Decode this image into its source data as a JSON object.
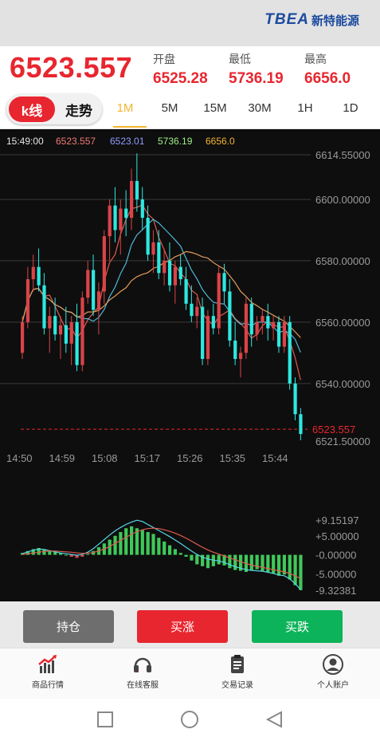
{
  "brand": {
    "logo_text": "TBEA",
    "name": "新特能源"
  },
  "price": {
    "current": "6523.557",
    "open_label": "开盘",
    "open_value": "6525.28",
    "low_label": "最低",
    "low_value": "5736.19",
    "high_label": "最高",
    "high_value": "6656.0"
  },
  "tabs": {
    "kline_label": "k线",
    "trend_label": "走势",
    "periods": [
      "1M",
      "5M",
      "15M",
      "30M",
      "1H",
      "1D"
    ],
    "active_period": "1M"
  },
  "chart_data": {
    "type": "candlestick",
    "legend": {
      "time": "15:49:00",
      "ma1": "6523.557",
      "ma2": "6523.01",
      "ma3": "5736.19",
      "ma4": "6656.0"
    },
    "y_ticks": [
      "6614.55000",
      "6600.00000",
      "6580.00000",
      "6560.00000",
      "6540.00000",
      "6521.50000"
    ],
    "current_price_label": "6523.557",
    "x_ticks": [
      "14:50",
      "14:59",
      "15:08",
      "15:17",
      "15:26",
      "15:35",
      "15:44"
    ],
    "ylim": [
      6521.5,
      6614.55
    ],
    "candles": [
      [
        6550.0,
        6562.0,
        6548.0,
        6560.0
      ],
      [
        6560.0,
        6578.0,
        6558.0,
        6574.0
      ],
      [
        6574.0,
        6582.0,
        6570.0,
        6578.0
      ],
      [
        6578.0,
        6584.0,
        6570.0,
        6572.0
      ],
      [
        6572.0,
        6576.0,
        6556.0,
        6558.0
      ],
      [
        6558.0,
        6565.0,
        6550.0,
        6562.0
      ],
      [
        6562.0,
        6568.0,
        6554.0,
        6556.0
      ],
      [
        6556.0,
        6562.0,
        6548.0,
        6559.0
      ],
      [
        6559.0,
        6565.0,
        6550.0,
        6553.0
      ],
      [
        6553.0,
        6562.0,
        6546.0,
        6560.0
      ],
      [
        6560.0,
        6566.0,
        6544.0,
        6546.0
      ],
      [
        6546.0,
        6570.0,
        6544.0,
        6568.0
      ],
      [
        6568.0,
        6580.0,
        6566.0,
        6577.0
      ],
      [
        6577.0,
        6582.0,
        6562.0,
        6564.0
      ],
      [
        6564.0,
        6573.0,
        6556.0,
        6570.0
      ],
      [
        6570.0,
        6590.0,
        6566.0,
        6588.0
      ],
      [
        6588.0,
        6600.0,
        6580.0,
        6598.0
      ],
      [
        6598.0,
        6604.0,
        6586.0,
        6590.0
      ],
      [
        6590.0,
        6600.0,
        6582.0,
        6597.0
      ],
      [
        6597.0,
        6603.0,
        6588.0,
        6594.0
      ],
      [
        6594.0,
        6610.0,
        6590.0,
        6606.0
      ],
      [
        6606.0,
        6615.0,
        6596.0,
        6600.0
      ],
      [
        6600.0,
        6604.0,
        6590.0,
        6594.0
      ],
      [
        6594.0,
        6598.0,
        6580.0,
        6582.0
      ],
      [
        6582.0,
        6590.0,
        6576.0,
        6586.0
      ],
      [
        6586.0,
        6590.0,
        6574.0,
        6576.0
      ],
      [
        6576.0,
        6584.0,
        6572.0,
        6580.0
      ],
      [
        6580.0,
        6586.0,
        6570.0,
        6572.0
      ],
      [
        6572.0,
        6580.0,
        6566.0,
        6578.0
      ],
      [
        6578.0,
        6582.0,
        6572.0,
        6574.0
      ],
      [
        6574.0,
        6578.0,
        6564.0,
        6566.0
      ],
      [
        6566.0,
        6572.0,
        6560.0,
        6562.0
      ],
      [
        6562.0,
        6568.0,
        6558.0,
        6565.0
      ],
      [
        6565.0,
        6568.0,
        6546.0,
        6548.0
      ],
      [
        6548.0,
        6564.0,
        6546.0,
        6562.0
      ],
      [
        6562.0,
        6566.0,
        6556.0,
        6558.0
      ],
      [
        6558.0,
        6578.0,
        6556.0,
        6576.0
      ],
      [
        6576.0,
        6579.0,
        6566.0,
        6570.0
      ],
      [
        6570.0,
        6574.0,
        6552.0,
        6554.0
      ],
      [
        6554.0,
        6560.0,
        6546.0,
        6548.0
      ],
      [
        6548.0,
        6552.0,
        6542.0,
        6550.0
      ],
      [
        6550.0,
        6568.0,
        6548.0,
        6566.0
      ],
      [
        6566.0,
        6568.0,
        6552.0,
        6556.0
      ],
      [
        6556.0,
        6562.0,
        6554.0,
        6560.0
      ],
      [
        6560.0,
        6564.0,
        6556.0,
        6562.0
      ],
      [
        6562.0,
        6566.0,
        6554.0,
        6558.0
      ],
      [
        6558.0,
        6562.0,
        6554.0,
        6560.0
      ],
      [
        6560.0,
        6562.0,
        6550.0,
        6552.0
      ],
      [
        6552.0,
        6562.0,
        6550.0,
        6560.0
      ],
      [
        6560.0,
        6562.0,
        6538.0,
        6540.0
      ],
      [
        6540.0,
        6542.0,
        6528.0,
        6530.0
      ],
      [
        6530.0,
        6532.0,
        6521.5,
        6523.557
      ]
    ],
    "macd_ticks": [
      "+9.15197",
      "+5.00000",
      "-0.00000",
      "-5.00000",
      "-9.32381"
    ],
    "macd_hist": [
      0.5,
      1.0,
      1.5,
      1.8,
      1.5,
      1.2,
      0.8,
      0.4,
      0.0,
      -0.5,
      -0.8,
      -0.5,
      0.2,
      1.0,
      2.0,
      3.0,
      4.0,
      5.0,
      6.0,
      7.0,
      7.5,
      7.0,
      6.5,
      6.0,
      5.5,
      4.5,
      3.5,
      2.5,
      1.5,
      0.5,
      -0.5,
      -1.5,
      -2.5,
      -3.0,
      -3.5,
      -3.0,
      -2.5,
      -2.8,
      -3.5,
      -4.0,
      -4.2,
      -4.5,
      -4.0,
      -3.8,
      -4.2,
      -4.6,
      -5.0,
      -5.5,
      -5.2,
      -6.5,
      -8.0,
      -9.3
    ],
    "macd_line": [
      0.3,
      0.8,
      1.2,
      1.5,
      1.4,
      1.1,
      0.8,
      0.5,
      0.3,
      0.1,
      -0.1,
      0.1,
      0.7,
      1.6,
      2.8,
      4.0,
      5.2,
      6.3,
      7.2,
      8.0,
      8.6,
      9.1,
      8.8,
      8.0,
      7.2,
      6.4,
      5.6,
      4.8,
      3.9,
      3.0,
      2.0,
      1.0,
      0.1,
      -0.6,
      -1.1,
      -1.4,
      -1.6,
      -2.0,
      -2.6,
      -3.1,
      -3.5,
      -3.9,
      -4.1,
      -4.2,
      -4.3,
      -4.6,
      -4.9,
      -5.3,
      -5.5,
      -6.3,
      -7.6,
      -9.1
    ],
    "signal_line": [
      0.1,
      0.3,
      0.5,
      0.7,
      0.9,
      1.0,
      1.0,
      0.9,
      0.8,
      0.7,
      0.5,
      0.4,
      0.4,
      0.6,
      1.0,
      1.5,
      2.2,
      3.0,
      3.8,
      4.6,
      5.4,
      6.1,
      6.6,
      6.9,
      7.0,
      6.9,
      6.6,
      6.2,
      5.7,
      5.1,
      4.4,
      3.6,
      2.8,
      2.0,
      1.3,
      0.7,
      0.2,
      -0.3,
      -0.8,
      -1.3,
      -1.8,
      -2.3,
      -2.7,
      -3.0,
      -3.3,
      -3.6,
      -3.9,
      -4.2,
      -4.5,
      -4.9,
      -5.5,
      -6.3
    ]
  },
  "colors": {
    "up": "#d94448",
    "down": "#2ee8e0",
    "accent": "#f2b431",
    "red": "#e8262f",
    "green": "#0db35a"
  },
  "actions": {
    "hold": "持仓",
    "buy_up": "买涨",
    "buy_down": "买跌"
  },
  "bottom_nav": [
    "商品行情",
    "在线客服",
    "交易记录",
    "个人账户"
  ]
}
